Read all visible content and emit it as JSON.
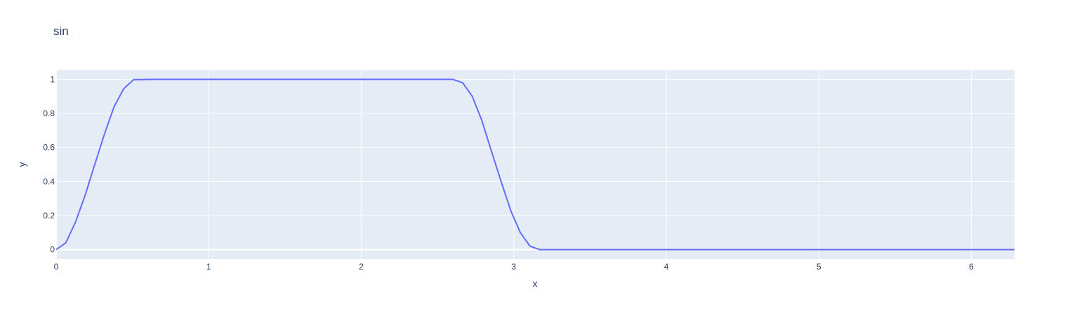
{
  "chart_data": {
    "type": "line",
    "title": "sin",
    "xlabel": "x",
    "ylabel": "y",
    "xlim": [
      0,
      6.283
    ],
    "ylim": [
      -0.055,
      1.055
    ],
    "x_ticks": [
      0,
      1,
      2,
      3,
      4,
      5,
      6
    ],
    "x_tick_labels": [
      "0",
      "1",
      "2",
      "3",
      "4",
      "5",
      "6"
    ],
    "y_ticks": [
      0,
      0.2,
      0.4,
      0.6,
      0.8,
      1
    ],
    "y_tick_labels": [
      "0",
      "0.2",
      "0.4",
      "0.6",
      "0.8",
      "1"
    ],
    "grid": true,
    "plot_background": "#e5ecf6",
    "line_color": "#636efa",
    "series": [
      {
        "x": [
          0,
          0.063,
          0.126,
          0.19,
          0.253,
          0.317,
          0.38,
          0.443,
          0.507,
          0.57,
          0.634,
          0.8,
          1.2,
          1.6,
          2.0,
          2.4,
          2.6,
          2.665,
          2.728,
          2.79,
          2.853,
          2.917,
          2.98,
          3.043,
          3.107,
          3.17,
          3.3,
          4.0,
          5.0,
          6.283
        ],
        "y": [
          0,
          0.04,
          0.16,
          0.32,
          0.5,
          0.68,
          0.84,
          0.945,
          0.998,
          0.999,
          1,
          1,
          1,
          1,
          1,
          1,
          1,
          0.98,
          0.9,
          0.76,
          0.58,
          0.4,
          0.23,
          0.1,
          0.02,
          0,
          0,
          0,
          0,
          0
        ]
      }
    ]
  }
}
